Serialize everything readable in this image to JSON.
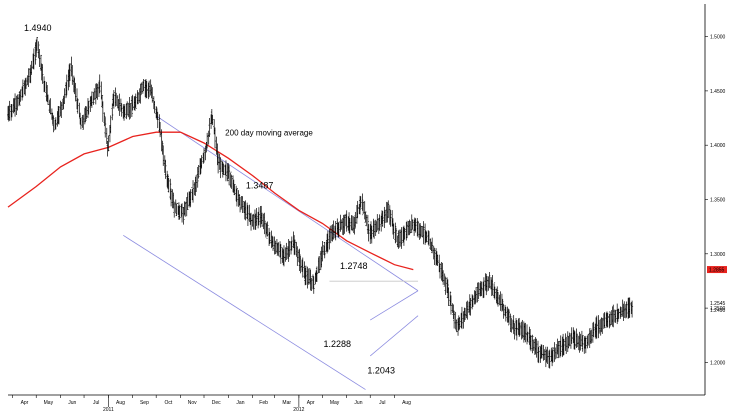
{
  "chart_data": {
    "type": "candlestick",
    "title": "",
    "xlabel": "",
    "ylabel": "",
    "x_range": [
      "2010-03-26",
      "2012-08-31"
    ],
    "ylim": [
      1.17,
      1.53
    ],
    "y_ticks": [
      "1.2000",
      "1.2500",
      "1.3000",
      "1.3500",
      "1.4000",
      "1.4500",
      "1.5000"
    ],
    "y_tick_values": [
      1.2,
      1.25,
      1.3,
      1.35,
      1.4,
      1.45,
      1.5
    ],
    "x_ticks": [
      "Apr",
      "May",
      "Jun",
      "Jul",
      "Aug",
      "Sep",
      "Oct",
      "Nov",
      "Dec",
      "Jan",
      "Feb",
      "Mar",
      "Apr",
      "May",
      "Jun",
      "Jul",
      "Aug"
    ],
    "x_tick_dates": [
      "2010-04-01",
      "2010-05-01",
      "2010-06-01",
      "2010-07-01",
      "2010-08-01",
      "2010-09-01",
      "2010-10-01",
      "2010-11-01",
      "2010-12-01",
      "2011-01-01",
      "2011-02-01",
      "2011-03-01",
      "2011-04-01",
      "2011-05-01",
      "2011-06-01",
      "2011-07-01",
      "2011-08-01"
    ],
    "year_labels": [
      {
        "label": "2011",
        "date": "2010-08-01"
      },
      {
        "label": "2012",
        "date": "2011-04-01"
      }
    ],
    "price_path": [
      [
        "2010-03-26",
        1.428
      ],
      [
        "2010-04-10",
        1.442
      ],
      [
        "2010-04-25",
        1.468
      ],
      [
        "2010-05-03",
        1.494
      ],
      [
        "2010-05-12",
        1.455
      ],
      [
        "2010-05-25",
        1.418
      ],
      [
        "2010-06-05",
        1.44
      ],
      [
        "2010-06-15",
        1.472
      ],
      [
        "2010-06-28",
        1.418
      ],
      [
        "2010-07-10",
        1.44
      ],
      [
        "2010-07-22",
        1.455
      ],
      [
        "2010-08-01",
        1.395
      ],
      [
        "2010-08-08",
        1.445
      ],
      [
        "2010-08-22",
        1.43
      ],
      [
        "2010-09-05",
        1.438
      ],
      [
        "2010-09-15",
        1.455
      ],
      [
        "2010-09-25",
        1.45
      ],
      [
        "2010-10-05",
        1.42
      ],
      [
        "2010-10-15",
        1.37
      ],
      [
        "2010-10-25",
        1.342
      ],
      [
        "2010-11-05",
        1.337
      ],
      [
        "2010-11-20",
        1.362
      ],
      [
        "2010-12-05",
        1.4
      ],
      [
        "2010-12-12",
        1.428
      ],
      [
        "2010-12-20",
        1.382
      ],
      [
        "2011-01-01",
        1.375
      ],
      [
        "2011-01-15",
        1.35
      ],
      [
        "2011-02-01",
        1.33
      ],
      [
        "2011-02-12",
        1.335
      ],
      [
        "2011-02-28",
        1.308
      ],
      [
        "2011-03-15",
        1.298
      ],
      [
        "2011-03-25",
        1.31
      ],
      [
        "2011-04-10",
        1.28
      ],
      [
        "2011-04-20",
        1.272
      ],
      [
        "2011-05-01",
        1.3
      ],
      [
        "2011-05-15",
        1.32
      ],
      [
        "2011-06-01",
        1.33
      ],
      [
        "2011-06-10",
        1.325
      ],
      [
        "2011-06-20",
        1.349
      ],
      [
        "2011-07-01",
        1.318
      ],
      [
        "2011-07-15",
        1.33
      ],
      [
        "2011-07-25",
        1.34
      ],
      [
        "2011-08-05",
        1.312
      ],
      [
        "2011-08-15",
        1.318
      ],
      [
        "2011-08-25",
        1.328
      ],
      [
        "2011-09-10",
        1.318
      ],
      [
        "2011-09-25",
        1.295
      ],
      [
        "2011-10-10",
        1.262
      ],
      [
        "2011-10-20",
        1.232
      ],
      [
        "2011-11-05",
        1.252
      ],
      [
        "2011-11-20",
        1.268
      ],
      [
        "2011-12-01",
        1.275
      ],
      [
        "2011-12-15",
        1.255
      ],
      [
        "2012-01-01",
        1.232
      ],
      [
        "2012-01-15",
        1.228
      ],
      [
        "2012-02-01",
        1.21
      ],
      [
        "2012-02-15",
        1.204
      ],
      [
        "2012-03-01",
        1.215
      ],
      [
        "2012-03-15",
        1.222
      ],
      [
        "2012-04-01",
        1.218
      ],
      [
        "2012-04-15",
        1.232
      ],
      [
        "2012-05-01",
        1.24
      ],
      [
        "2012-05-20",
        1.248
      ],
      [
        "2012-05-31",
        1.252
      ]
    ],
    "moving_average": {
      "name": "200 day moving average",
      "color": "#e8231e",
      "values": [
        [
          "2010-03-26",
          1.343
        ],
        [
          "2010-05-01",
          1.362
        ],
        [
          "2010-06-01",
          1.38
        ],
        [
          "2010-07-01",
          1.392
        ],
        [
          "2010-08-01",
          1.398
        ],
        [
          "2010-09-01",
          1.408
        ],
        [
          "2010-10-01",
          1.412
        ],
        [
          "2010-11-01",
          1.412
        ],
        [
          "2010-12-01",
          1.402
        ],
        [
          "2011-01-01",
          1.388
        ],
        [
          "2011-02-01",
          1.372
        ],
        [
          "2011-03-01",
          1.356
        ],
        [
          "2011-04-01",
          1.34
        ],
        [
          "2011-05-01",
          1.328
        ],
        [
          "2011-06-01",
          1.312
        ],
        [
          "2011-07-01",
          1.301
        ],
        [
          "2011-08-01",
          1.29
        ],
        [
          "2011-08-25",
          1.2855
        ]
      ],
      "label": "1.2855"
    },
    "current_price": "1.2545",
    "current_price_2": "1.2490",
    "channel_lines": [
      {
        "name": "upper",
        "color": "#8c8ce0",
        "points": [
          [
            "2010-10-01",
            1.427
          ],
          [
            "2011-08-31",
            1.266
          ]
        ]
      },
      {
        "name": "lower",
        "color": "#8c8ce0",
        "points": [
          [
            "2010-08-20",
            1.317
          ],
          [
            "2011-06-25",
            1.175
          ]
        ]
      },
      {
        "name": "flag-upper",
        "color": "#8c8ce0",
        "points": [
          [
            "2011-07-01",
            1.239
          ],
          [
            "2011-08-31",
            1.266
          ]
        ]
      },
      {
        "name": "flag-lower",
        "color": "#8c8ce0",
        "points": [
          [
            "2011-07-01",
            1.206
          ],
          [
            "2011-08-31",
            1.243
          ]
        ]
      },
      {
        "name": "resistance",
        "color": "#c8c8c8",
        "points": [
          [
            "2011-05-10",
            1.2748
          ],
          [
            "2011-08-31",
            1.2748
          ]
        ]
      }
    ],
    "annotations": [
      {
        "label": "1.4940",
        "date": "2010-05-03",
        "value": 1.494,
        "anchor": "top"
      },
      {
        "label": "1.3487",
        "date": "2011-02-10",
        "value": 1.349,
        "anchor": "top"
      },
      {
        "label": "1.2748",
        "date": "2011-06-10",
        "value": 1.2748,
        "anchor": "top"
      },
      {
        "label": "1.2288",
        "date": "2011-05-20",
        "value": 1.2288,
        "anchor": "bottom"
      },
      {
        "label": "1.2043",
        "date": "2011-07-15",
        "value": 1.2043,
        "anchor": "bottom"
      }
    ],
    "ma_text": "200 day moving average",
    "grid": false
  }
}
